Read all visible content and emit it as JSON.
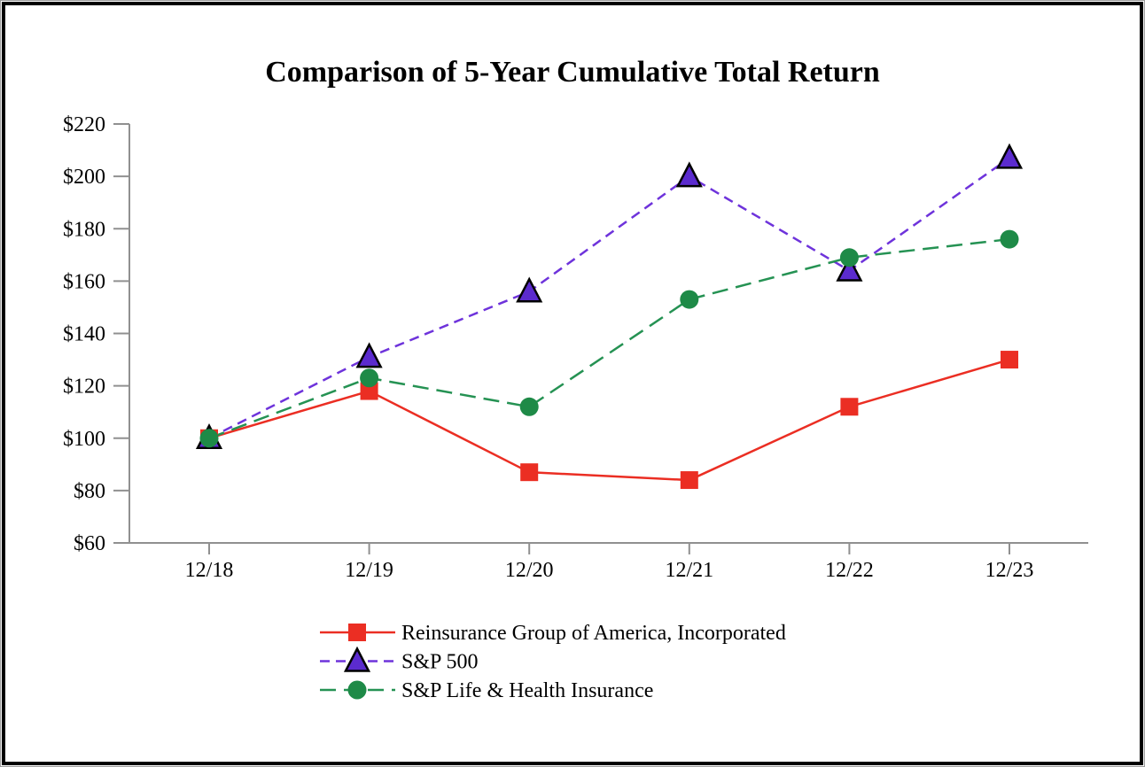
{
  "title": "Comparison of 5-Year Cumulative Total Return",
  "chart_data": {
    "type": "line",
    "title": "Comparison of 5-Year Cumulative Total Return",
    "categories": [
      "12/18",
      "12/19",
      "12/20",
      "12/21",
      "12/22",
      "12/23"
    ],
    "series": [
      {
        "name": "Reinsurance Group of America, Incorporated",
        "values": [
          100,
          118,
          87,
          84,
          112,
          130
        ],
        "line_color": "#EB2E23",
        "marker_color": "#EB2E23",
        "marker": "square",
        "line_dash": "solid"
      },
      {
        "name": "S&P 500",
        "values": [
          100,
          131,
          156,
          200,
          164,
          207
        ],
        "line_color": "#6E33DB",
        "marker_color": "#5B2BCE",
        "marker_outline": "#000000",
        "marker": "triangle",
        "line_dash": "dash"
      },
      {
        "name": "S&P Life & Health Insurance",
        "values": [
          100,
          123,
          112,
          153,
          169,
          176
        ],
        "line_color": "#259253",
        "marker_color": "#1E8A47",
        "marker": "circle",
        "line_dash": "long-dash"
      }
    ],
    "ylim": [
      60,
      220
    ],
    "ytick_step": 20,
    "ytick_prefix": "$",
    "xlabel": "",
    "ylabel": "",
    "grid": false,
    "legend_position": "bottom"
  },
  "colors": {
    "axis": "#909090",
    "text": "#000000",
    "frame": "#000000",
    "background": "#FFFFFF"
  }
}
